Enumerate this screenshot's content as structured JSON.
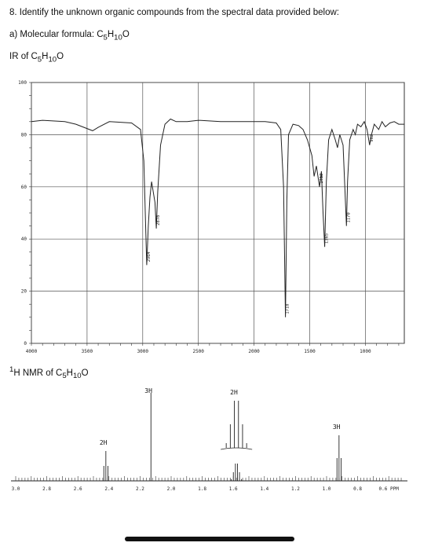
{
  "question": {
    "title": "8. Identify the unknown organic compounds from the spectral data provided below:",
    "part_a": "a) Molecular formula: C5H10O",
    "ir_label": "IR of C5H10O",
    "nmr_label": "1H NMR of C5H10O"
  },
  "chart_data": [
    {
      "type": "line",
      "name": "IR spectrum",
      "xlim": [
        4000,
        650
      ],
      "ylim": [
        0,
        100
      ],
      "x_ticks": [
        4000,
        3500,
        3000,
        2500,
        2000,
        1500,
        1000
      ],
      "x_tick_labels": [
        "4000",
        "3500",
        "3000",
        "2500",
        "2000",
        "1500",
        "1000"
      ],
      "y_ticks": [
        0,
        20,
        40,
        60,
        80,
        100
      ],
      "y_tick_labels": [
        "0",
        "20",
        "40",
        "60",
        "80",
        "100"
      ],
      "grid": true,
      "baseline": [
        [
          4000,
          85.0
        ],
        [
          3900,
          85.5
        ],
        [
          3700,
          85.0
        ],
        [
          3600,
          84.0
        ],
        [
          3450,
          81.5
        ],
        [
          3400,
          82.8
        ],
        [
          3300,
          85.0
        ],
        [
          3100,
          84.5
        ],
        [
          3020,
          82.0
        ],
        [
          2990,
          70.0
        ],
        [
          2964,
          30.0
        ],
        [
          2950,
          45.0
        ],
        [
          2935,
          56.0
        ],
        [
          2920,
          62.0
        ],
        [
          2890,
          54.0
        ],
        [
          2878,
          44.0
        ],
        [
          2865,
          58.0
        ],
        [
          2840,
          76.0
        ],
        [
          2800,
          84.0
        ],
        [
          2750,
          86.0
        ],
        [
          2700,
          85.0
        ],
        [
          2600,
          85.0
        ],
        [
          2500,
          85.5
        ],
        [
          2300,
          85.0
        ],
        [
          2100,
          85.0
        ],
        [
          1900,
          85.0
        ],
        [
          1800,
          84.5
        ],
        [
          1760,
          82.0
        ],
        [
          1735,
          60.0
        ],
        [
          1718,
          10.0
        ],
        [
          1705,
          55.0
        ],
        [
          1690,
          80.0
        ],
        [
          1650,
          84.0
        ],
        [
          1600,
          83.5
        ],
        [
          1560,
          82.0
        ],
        [
          1520,
          78.0
        ],
        [
          1480,
          72.0
        ],
        [
          1460,
          64.0
        ],
        [
          1440,
          68.0
        ],
        [
          1412,
          60.0
        ],
        [
          1395,
          66.0
        ],
        [
          1380,
          50.0
        ],
        [
          1365,
          37.0
        ],
        [
          1350,
          62.0
        ],
        [
          1330,
          78.0
        ],
        [
          1300,
          82.0
        ],
        [
          1270,
          78.0
        ],
        [
          1250,
          75.0
        ],
        [
          1230,
          80.0
        ],
        [
          1200,
          76.0
        ],
        [
          1180,
          55.0
        ],
        [
          1170,
          45.0
        ],
        [
          1160,
          62.0
        ],
        [
          1140,
          78.0
        ],
        [
          1110,
          82.0
        ],
        [
          1090,
          80.0
        ],
        [
          1070,
          84.0
        ],
        [
          1040,
          83.0
        ],
        [
          1010,
          85.0
        ],
        [
          985,
          82.0
        ],
        [
          962,
          76.0
        ],
        [
          945,
          80.0
        ],
        [
          920,
          84.0
        ],
        [
          880,
          82.0
        ],
        [
          850,
          85.0
        ],
        [
          820,
          83.0
        ],
        [
          780,
          84.5
        ],
        [
          740,
          85.0
        ],
        [
          700,
          84.0
        ],
        [
          650,
          84.0
        ]
      ],
      "peak_labels": [
        {
          "x": 2964,
          "label": "2964"
        },
        {
          "x": 2878,
          "label": "2878"
        },
        {
          "x": 1718,
          "label": "1718"
        },
        {
          "x": 1412,
          "label": "1412"
        },
        {
          "x": 1365,
          "label": "1365"
        },
        {
          "x": 1170,
          "label": "1170"
        },
        {
          "x": 962,
          "label": "962"
        }
      ]
    },
    {
      "type": "line",
      "name": "1H NMR spectrum",
      "xlim": [
        3.0,
        0.5
      ],
      "x_ticks": [
        3.0,
        2.8,
        2.6,
        2.4,
        2.2,
        2.0,
        1.8,
        1.6,
        1.4,
        1.2,
        1.0,
        0.8,
        0.6
      ],
      "x_tick_labels": [
        "3.0",
        "2.8",
        "2.6",
        "2.4",
        "2.2",
        "2.0",
        "1.8",
        "1.6",
        "1.4",
        "1.2",
        "1.0",
        "0.8",
        "0.6 PPM"
      ],
      "signals": [
        {
          "shift": 2.42,
          "integration": "2H",
          "multiplicity": "triplet"
        },
        {
          "shift": 2.13,
          "integration": "3H",
          "multiplicity": "singlet"
        },
        {
          "shift": 1.58,
          "integration": "2H",
          "multiplicity": "sextet"
        },
        {
          "shift": 0.92,
          "integration": "3H",
          "multiplicity": "triplet"
        }
      ]
    }
  ]
}
